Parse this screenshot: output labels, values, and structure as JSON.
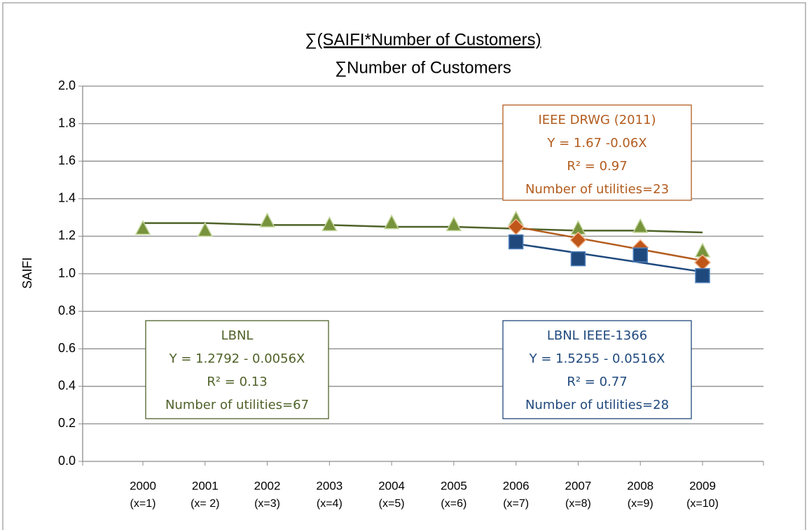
{
  "chart_data": {
    "type": "line",
    "title": [
      "∑(SAIFI*Number of Customers)",
      "∑Number of Customers"
    ],
    "y_label": "SAIFI",
    "categories": [
      "2000",
      "2001",
      "2002",
      "2003",
      "2004",
      "2005",
      "2006",
      "2007",
      "2008",
      "2009"
    ],
    "category_sublabels": [
      "(x=1)",
      "(x= 2)",
      "(x=3)",
      "(x=4)",
      "(x=5)",
      "(x=6)",
      "(x=7)",
      "(x=8)",
      "(x=9)",
      "(x=10)"
    ],
    "ylim": [
      0,
      2
    ],
    "yticks": [
      {
        "value": 0,
        "label": "0.0"
      },
      {
        "value": 0.2,
        "label": "0.2"
      },
      {
        "value": 0.4,
        "label": "0.4"
      },
      {
        "value": 0.6,
        "label": "0.6"
      },
      {
        "value": 0.8,
        "label": "0.8"
      },
      {
        "value": 1,
        "label": "1.0"
      },
      {
        "value": 1.2,
        "label": "1.2"
      },
      {
        "value": 1.4,
        "label": "1.4"
      },
      {
        "value": 1.6,
        "label": "1.6"
      },
      {
        "value": 1.8,
        "label": "1.8"
      },
      {
        "value": 2,
        "label": "2.0"
      }
    ],
    "grid": true,
    "series": [
      {
        "name": "LBNL",
        "marker": "triangle",
        "color": "#4f6228",
        "marker_color": "#77933c",
        "values": [
          1.24,
          1.23,
          1.28,
          1.26,
          1.27,
          1.26,
          1.29,
          1.24,
          1.25,
          1.12
        ],
        "trend_values": [
          1.27,
          1.27,
          1.26,
          1.26,
          1.25,
          1.25,
          1.24,
          1.23,
          1.23,
          1.22
        ],
        "annotation": [
          "LBNL",
          "Y = 1.2792 - 0.0056X",
          "R² = 0.13",
          "Number of utilities=67"
        ]
      },
      {
        "name": "IEEE DRWG (2011)",
        "marker": "diamond",
        "color": "#b35c1e",
        "marker_color": "#c0561a",
        "values": [
          null,
          null,
          null,
          null,
          null,
          null,
          1.25,
          1.18,
          1.14,
          1.06
        ],
        "trend_values": [
          null,
          null,
          null,
          null,
          null,
          null,
          1.25,
          1.19,
          1.13,
          1.07
        ],
        "annotation": [
          "IEEE DRWG (2011)",
          "Y = 1.67 -0.06X",
          "R² = 0.97",
          "Number of utilities=23"
        ]
      },
      {
        "name": "LBNL IEEE-1366",
        "marker": "square",
        "color": "#1f497d",
        "marker_color": "#1f497d",
        "values": [
          null,
          null,
          null,
          null,
          null,
          null,
          1.17,
          1.08,
          1.1,
          0.99
        ],
        "trend_values": [
          null,
          null,
          null,
          null,
          null,
          null,
          1.16,
          1.11,
          1.06,
          1.01
        ],
        "annotation": [
          "LBNL IEEE-1366",
          "Y = 1.5255 - 0.0516X",
          "R² = 0.77",
          "Number of utilities=28"
        ]
      }
    ]
  }
}
